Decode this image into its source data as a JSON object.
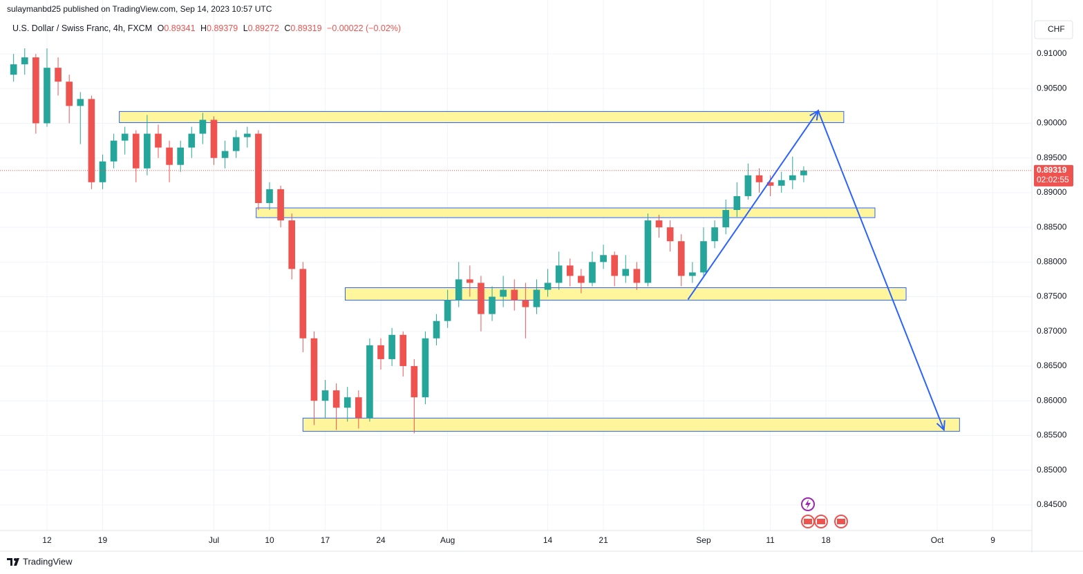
{
  "header": {
    "published": "sulaymanbd25 published on TradingView.com, Sep 14, 2023 10:57 UTC",
    "symbol": "U.S. Dollar / Swiss Franc, 4h, FXCM",
    "open_label": "O",
    "open": 0.89341,
    "high_label": "H",
    "high": 0.89379,
    "low_label": "L",
    "low": 0.89272,
    "close_label": "C",
    "close": 0.89319,
    "change": "−0.00022 (−0.02%)",
    "currency": "CHF"
  },
  "footer": {
    "brand": "TradingView"
  },
  "chart_data": {
    "type": "candlestick",
    "up_color": "#26a69a",
    "down_color": "#ef5350",
    "grid": true,
    "x": [
      -3,
      -2,
      -1,
      0,
      1,
      2,
      3,
      4,
      5,
      6,
      7,
      8,
      9,
      10,
      11,
      12,
      13,
      14,
      15,
      16,
      17,
      18,
      19,
      20,
      21,
      22,
      23,
      24,
      25,
      26,
      27,
      28,
      29,
      30,
      31,
      32,
      33,
      34,
      35,
      36,
      37,
      38,
      39,
      40,
      41,
      42,
      43,
      44,
      45,
      46,
      47,
      48,
      49,
      50,
      51,
      52,
      53,
      54,
      55,
      56,
      57,
      58,
      59,
      60,
      61,
      62,
      63,
      64,
      65,
      66,
      67,
      68
    ],
    "open": [
      0.907,
      0.9085,
      0.9095,
      0.9,
      0.908,
      0.906,
      0.9025,
      0.9035,
      0.8915,
      0.8945,
      0.8975,
      0.8985,
      0.8935,
      0.8985,
      0.8965,
      0.894,
      0.8965,
      0.8985,
      0.9005,
      0.895,
      0.896,
      0.898,
      0.8985,
      0.8885,
      0.8905,
      0.886,
      0.879,
      0.869,
      0.86,
      0.8615,
      0.859,
      0.8605,
      0.8575,
      0.868,
      0.866,
      0.8695,
      0.865,
      0.8605,
      0.869,
      0.8715,
      0.8745,
      0.8775,
      0.877,
      0.8725,
      0.875,
      0.876,
      0.8745,
      0.8735,
      0.876,
      0.877,
      0.8795,
      0.878,
      0.877,
      0.88,
      0.881,
      0.878,
      0.879,
      0.877,
      0.886,
      0.885,
      0.883,
      0.878,
      0.8785,
      0.883,
      0.885,
      0.8875,
      0.8895,
      0.8925,
      0.8915,
      0.891,
      0.8918,
      0.8925
    ],
    "high": [
      0.91,
      0.9108,
      0.91,
      0.9108,
      0.9095,
      0.907,
      0.9045,
      0.904,
      0.8955,
      0.8985,
      0.8995,
      0.899,
      0.9012,
      0.8998,
      0.8975,
      0.8975,
      0.8995,
      0.9015,
      0.901,
      0.8975,
      0.899,
      0.8995,
      0.899,
      0.8915,
      0.891,
      0.887,
      0.88,
      0.87,
      0.863,
      0.8625,
      0.862,
      0.8615,
      0.869,
      0.869,
      0.8705,
      0.87,
      0.866,
      0.87,
      0.8725,
      0.876,
      0.88,
      0.8795,
      0.878,
      0.8765,
      0.878,
      0.8775,
      0.877,
      0.8775,
      0.879,
      0.8815,
      0.8805,
      0.879,
      0.8815,
      0.8825,
      0.8815,
      0.881,
      0.88,
      0.887,
      0.8868,
      0.886,
      0.884,
      0.88,
      0.885,
      0.886,
      0.889,
      0.8915,
      0.8942,
      0.8935,
      0.8925,
      0.893,
      0.8952,
      0.8938
    ],
    "low": [
      0.906,
      0.907,
      0.8985,
      0.8995,
      0.904,
      0.9,
      0.897,
      0.8905,
      0.8905,
      0.8935,
      0.8955,
      0.8915,
      0.8925,
      0.895,
      0.8915,
      0.893,
      0.895,
      0.897,
      0.894,
      0.8935,
      0.895,
      0.8965,
      0.8875,
      0.8875,
      0.885,
      0.8775,
      0.867,
      0.8565,
      0.8575,
      0.8558,
      0.857,
      0.856,
      0.857,
      0.8645,
      0.865,
      0.8635,
      0.8553,
      0.8595,
      0.868,
      0.8705,
      0.8735,
      0.875,
      0.87,
      0.8715,
      0.8735,
      0.873,
      0.869,
      0.8725,
      0.875,
      0.876,
      0.8765,
      0.8755,
      0.8765,
      0.879,
      0.8765,
      0.877,
      0.876,
      0.8765,
      0.8835,
      0.8815,
      0.8765,
      0.877,
      0.878,
      0.882,
      0.884,
      0.8865,
      0.889,
      0.89,
      0.8895,
      0.89,
      0.8905,
      0.8915
    ],
    "close": [
      0.9085,
      0.9095,
      0.9,
      0.908,
      0.906,
      0.9025,
      0.9035,
      0.8915,
      0.8945,
      0.8975,
      0.8985,
      0.8935,
      0.8985,
      0.8965,
      0.894,
      0.8965,
      0.8985,
      0.9005,
      0.895,
      0.896,
      0.898,
      0.8985,
      0.8885,
      0.8905,
      0.886,
      0.879,
      0.869,
      0.86,
      0.8615,
      0.859,
      0.8605,
      0.8575,
      0.868,
      0.866,
      0.8695,
      0.865,
      0.8605,
      0.869,
      0.8715,
      0.8745,
      0.8775,
      0.877,
      0.8725,
      0.875,
      0.876,
      0.8745,
      0.8735,
      0.876,
      0.877,
      0.8795,
      0.878,
      0.877,
      0.88,
      0.881,
      0.878,
      0.879,
      0.877,
      0.886,
      0.885,
      0.883,
      0.878,
      0.8785,
      0.883,
      0.885,
      0.8875,
      0.8895,
      0.8925,
      0.8915,
      0.891,
      0.8918,
      0.8925,
      0.89319
    ],
    "xlim": [
      -3.6,
      88.5
    ],
    "ylim": [
      0.8413,
      0.9113
    ],
    "xticks": [
      {
        "value": 0,
        "label": "12"
      },
      {
        "value": 5,
        "label": "19"
      },
      {
        "value": 15,
        "label": "Jul"
      },
      {
        "value": 20,
        "label": "10"
      },
      {
        "value": 25,
        "label": "17"
      },
      {
        "value": 30,
        "label": "24"
      },
      {
        "value": 36,
        "label": "Aug"
      },
      {
        "value": 45,
        "label": "14"
      },
      {
        "value": 50,
        "label": "21"
      },
      {
        "value": 59,
        "label": "Sep"
      },
      {
        "value": 65,
        "label": "11"
      },
      {
        "value": 70,
        "label": "18"
      },
      {
        "value": 80,
        "label": "Oct"
      },
      {
        "value": 85,
        "label": "9"
      }
    ],
    "yticks": [
      {
        "value": 0.91,
        "label": "0.91000"
      },
      {
        "value": 0.905,
        "label": "0.90500"
      },
      {
        "value": 0.9,
        "label": "0.90000"
      },
      {
        "value": 0.895,
        "label": "0.89500"
      },
      {
        "value": 0.89,
        "label": "0.89000"
      },
      {
        "value": 0.885,
        "label": "0.88500"
      },
      {
        "value": 0.88,
        "label": "0.88000"
      },
      {
        "value": 0.875,
        "label": "0.87500"
      },
      {
        "value": 0.87,
        "label": "0.87000"
      },
      {
        "value": 0.865,
        "label": "0.86500"
      },
      {
        "value": 0.86,
        "label": "0.86000"
      },
      {
        "value": 0.855,
        "label": "0.85500"
      },
      {
        "value": 0.85,
        "label": "0.85000"
      },
      {
        "value": 0.845,
        "label": "0.84500"
      }
    ],
    "last_price": 0.89319,
    "last_color": "#ef5350",
    "countdown": "02:02:55",
    "zones": [
      {
        "x": [
          6.5,
          71.6
        ],
        "y": [
          0.9017,
          0.9001
        ]
      },
      {
        "x": [
          18.8,
          74.4
        ],
        "y": [
          0.8878,
          0.8864
        ]
      },
      {
        "x": [
          26.8,
          77.2
        ],
        "y": [
          0.8763,
          0.8745
        ]
      },
      {
        "x": [
          23.0,
          82.0
        ],
        "y": [
          0.8575,
          0.8556
        ]
      }
    ],
    "zone_color": "#fff59d",
    "arrow": {
      "x": [
        57.6,
        69.3,
        80.6
      ],
      "y": [
        0.8746,
        0.9018,
        0.8558
      ],
      "color": "#2962ff"
    }
  }
}
